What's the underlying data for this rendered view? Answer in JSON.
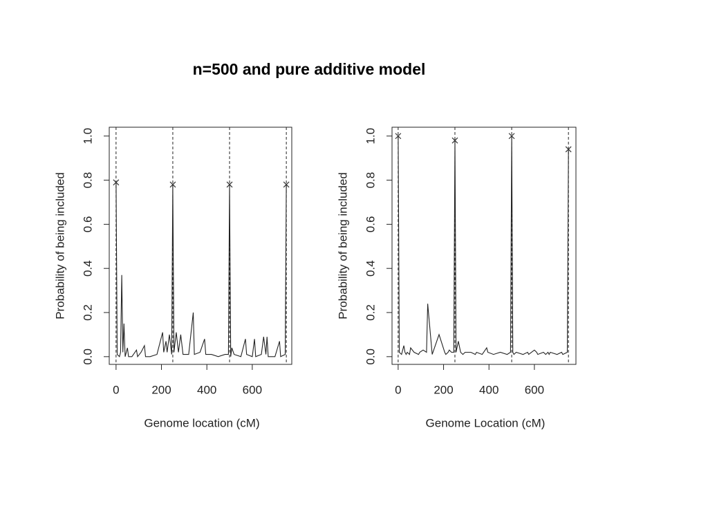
{
  "title": "n=500 and pure additive model",
  "chart_data": [
    {
      "type": "line",
      "xlabel": "Genome location (cM)",
      "ylabel": "Probability of being included",
      "xlim": [
        -30,
        774
      ],
      "ylim": [
        -0.035,
        1.04
      ],
      "xticks": [
        0,
        200,
        400,
        600
      ],
      "yticks": [
        {
          "value": 0,
          "label": "0.0"
        },
        0.2,
        0.4,
        0.6,
        0.8,
        {
          "value": 1,
          "label": "1.0"
        }
      ],
      "color": "#222222",
      "x": [
        0,
        5,
        15,
        20,
        25,
        30,
        35,
        40,
        50,
        55,
        70,
        90,
        95,
        110,
        125,
        130,
        150,
        180,
        205,
        210,
        220,
        225,
        235,
        245,
        250,
        255,
        265,
        275,
        285,
        295,
        320,
        340,
        345,
        370,
        390,
        395,
        420,
        450,
        480,
        495,
        500,
        505,
        510,
        520,
        550,
        570,
        575,
        600,
        610,
        615,
        640,
        650,
        660,
        665,
        670,
        700,
        720,
        725,
        745,
        750
      ],
      "values": [
        0.79,
        0.01,
        0.0,
        0.02,
        0.37,
        0.02,
        0.15,
        0.0,
        0.04,
        0.0,
        0.0,
        0.03,
        0.0,
        0.02,
        0.05,
        0.0,
        0.0,
        0.01,
        0.11,
        0.02,
        0.07,
        0.02,
        0.1,
        0.01,
        0.78,
        0.02,
        0.11,
        0.02,
        0.1,
        0.01,
        0.01,
        0.2,
        0.01,
        0.02,
        0.08,
        0.01,
        0.01,
        0.0,
        0.01,
        0.01,
        0.78,
        0.0,
        0.04,
        0.01,
        0.0,
        0.08,
        0.01,
        0.0,
        0.08,
        0.0,
        0.01,
        0.09,
        0.01,
        0.09,
        0.0,
        0.0,
        0.07,
        0.0,
        0.01,
        0.78
      ],
      "vlines": [
        0,
        250,
        500,
        750
      ],
      "markers": {
        "x": [
          0,
          250,
          500,
          750
        ],
        "y": [
          0.79,
          0.78,
          0.78,
          0.78
        ]
      }
    },
    {
      "type": "line",
      "xlabel": "Genome Location (cM)",
      "ylabel": "Probability of being included",
      "xlim": [
        -27,
        783
      ],
      "ylim": [
        -0.035,
        1.04
      ],
      "xticks": [
        0,
        200,
        400,
        600
      ],
      "yticks": [
        {
          "value": 0,
          "label": "0.0"
        },
        0.2,
        0.4,
        0.6,
        0.8,
        {
          "value": 1,
          "label": "1.0"
        }
      ],
      "color": "#222222",
      "x": [
        0,
        5,
        15,
        20,
        25,
        30,
        35,
        40,
        50,
        55,
        70,
        90,
        95,
        110,
        125,
        130,
        150,
        180,
        205,
        210,
        220,
        225,
        235,
        245,
        250,
        255,
        265,
        275,
        285,
        295,
        320,
        340,
        345,
        370,
        390,
        395,
        420,
        450,
        480,
        495,
        500,
        505,
        510,
        520,
        550,
        570,
        575,
        600,
        610,
        615,
        640,
        650,
        660,
        665,
        670,
        700,
        720,
        725,
        745,
        750
      ],
      "values": [
        1.0,
        0.02,
        0.01,
        0.03,
        0.05,
        0.02,
        0.01,
        0.02,
        0.01,
        0.04,
        0.02,
        0.01,
        0.02,
        0.03,
        0.02,
        0.24,
        0.01,
        0.1,
        0.02,
        0.01,
        0.02,
        0.03,
        0.02,
        0.02,
        0.98,
        0.02,
        0.07,
        0.02,
        0.01,
        0.02,
        0.02,
        0.01,
        0.02,
        0.01,
        0.04,
        0.02,
        0.01,
        0.02,
        0.01,
        0.02,
        1.0,
        0.02,
        0.01,
        0.02,
        0.01,
        0.02,
        0.01,
        0.03,
        0.02,
        0.01,
        0.02,
        0.01,
        0.02,
        0.01,
        0.02,
        0.01,
        0.02,
        0.01,
        0.02,
        0.94
      ],
      "vlines": [
        0,
        250,
        500,
        750
      ],
      "markers": {
        "x": [
          0,
          250,
          500,
          750
        ],
        "y": [
          1.0,
          0.98,
          1.0,
          0.94
        ]
      }
    }
  ]
}
